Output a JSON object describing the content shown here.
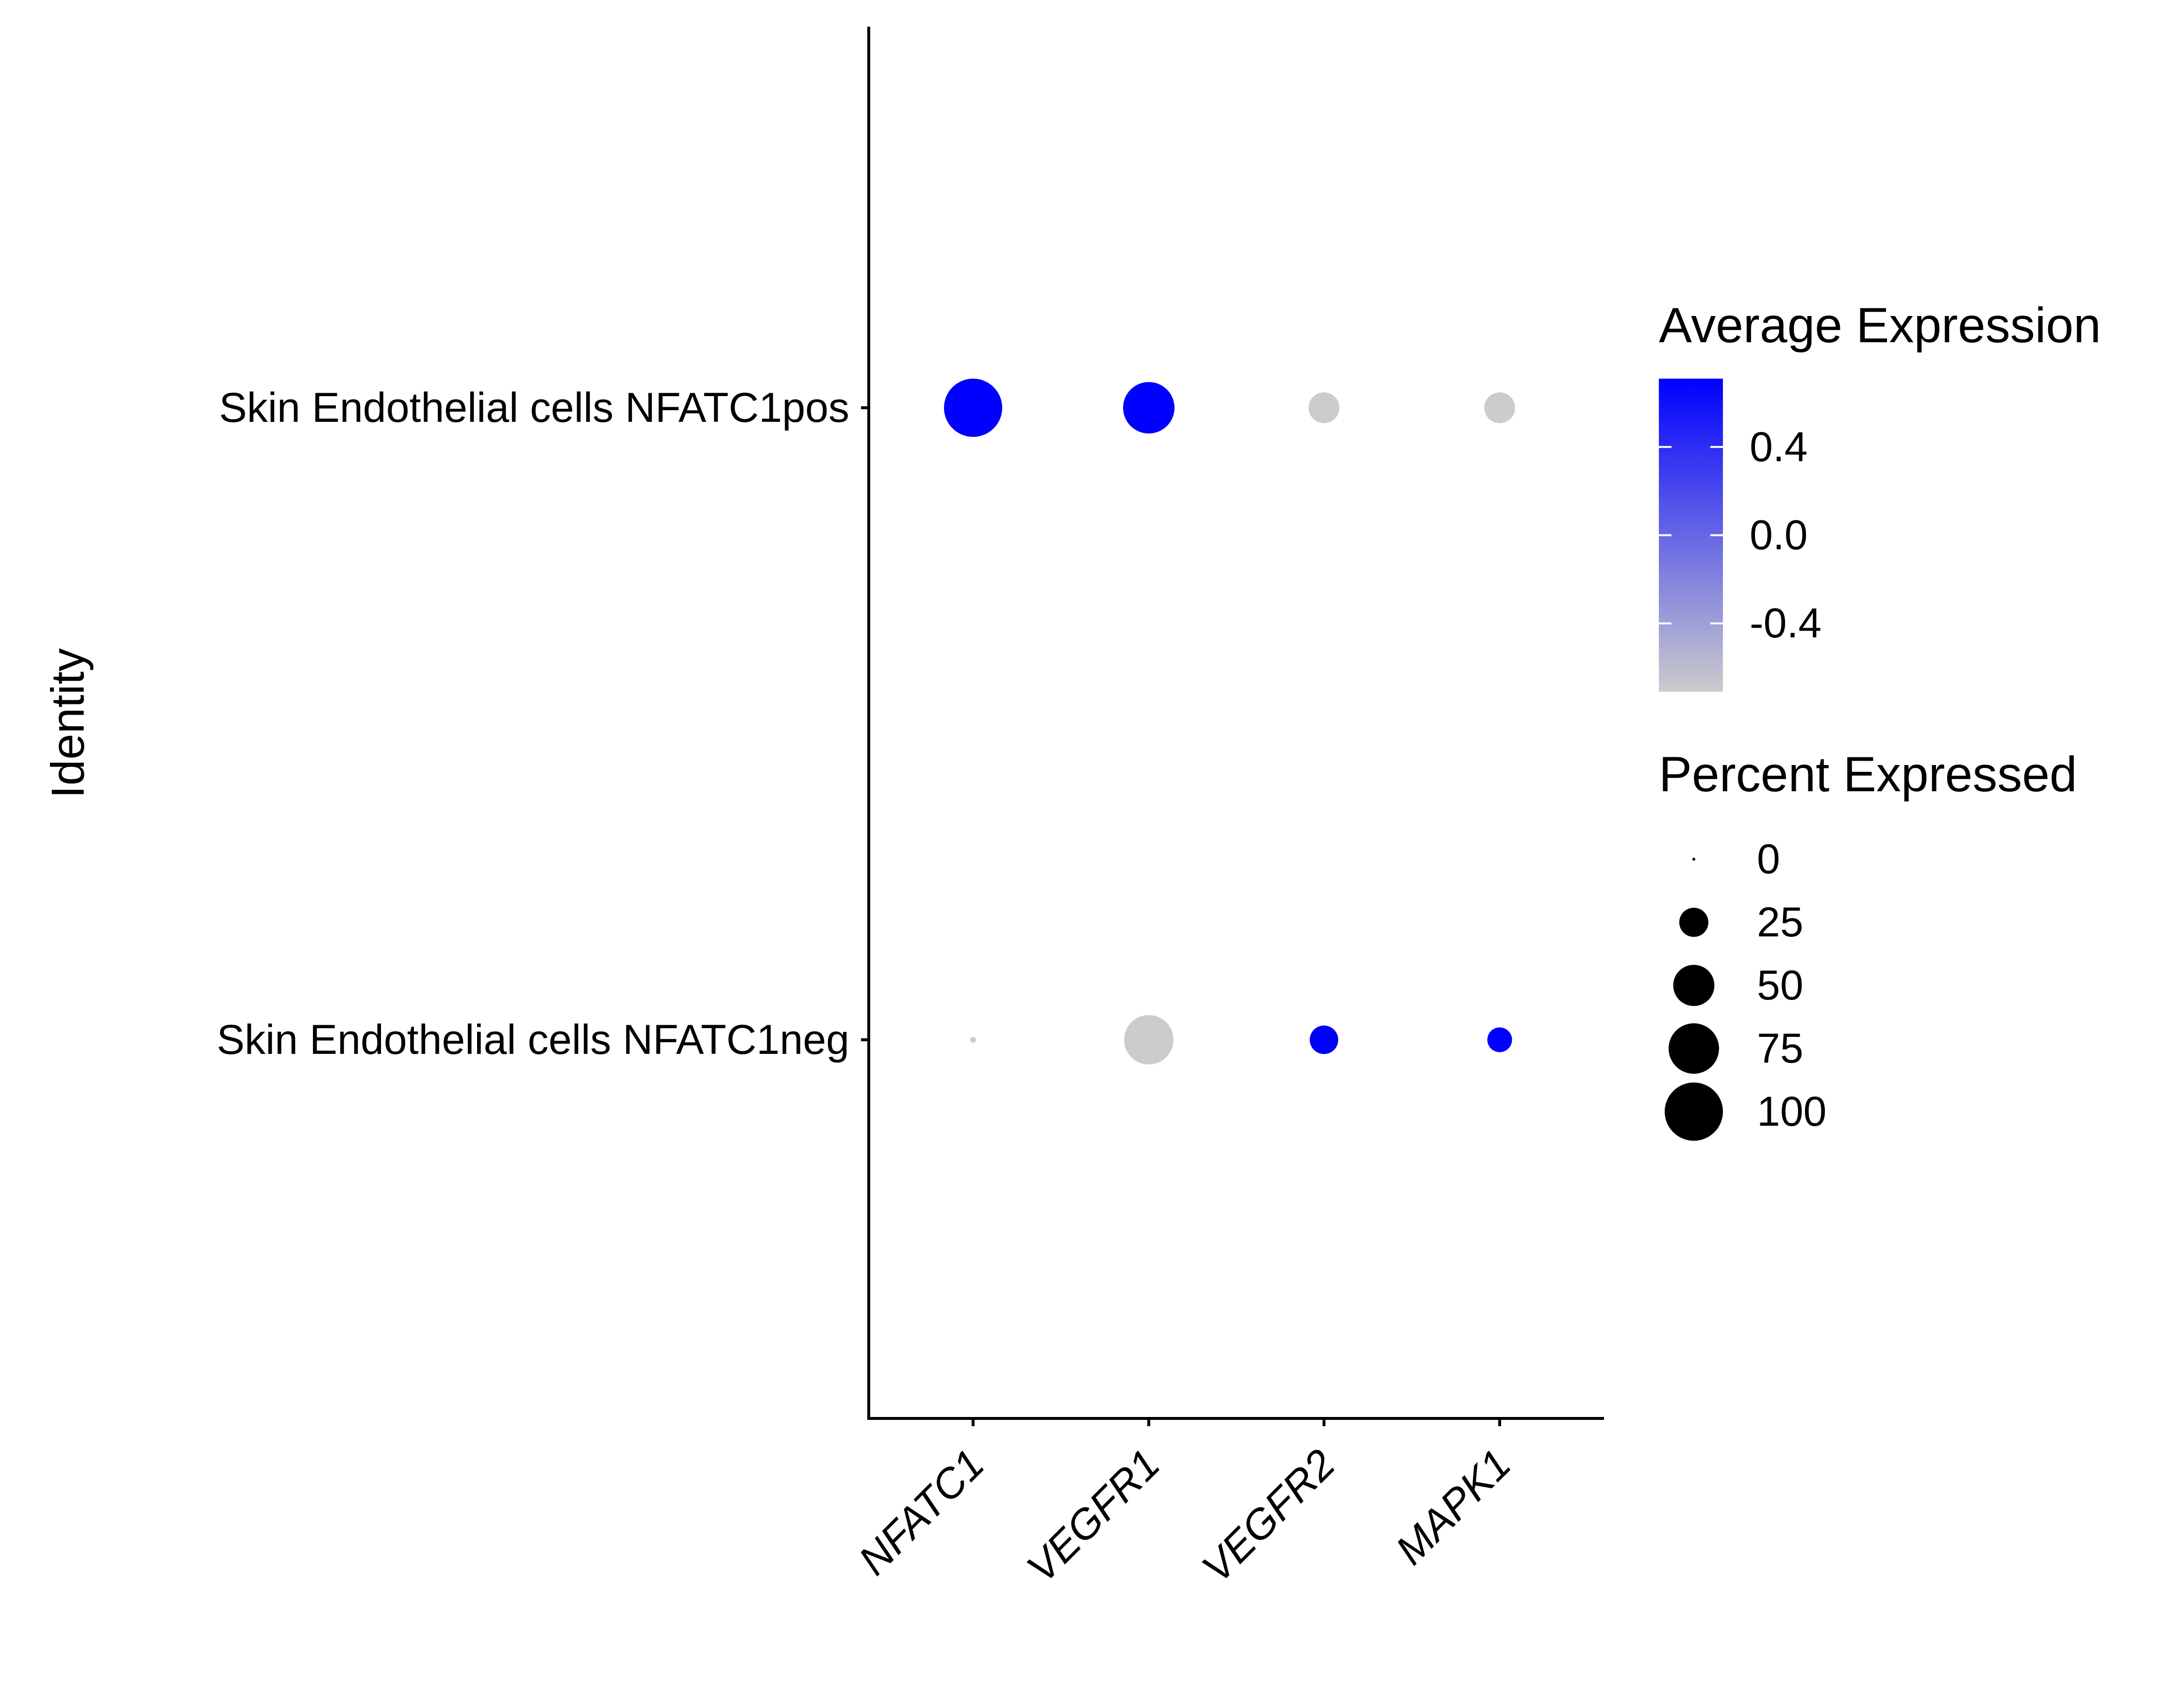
{
  "chart_data": {
    "type": "scatter",
    "subtype": "dot-plot",
    "xlabel": "",
    "ylabel": "Identity",
    "x_categories": [
      "NFATC1",
      "VEGFR1",
      "VEGFR2",
      "MAPK1"
    ],
    "y_categories": [
      "Skin Endothelial cells NFATC1pos",
      "Skin Endothelial cells NFATC1neg"
    ],
    "points": [
      {
        "gene": "NFATC1",
        "identity": "Skin Endothelial cells NFATC1pos",
        "avg_expression": 0.71,
        "pct_expressed": 100
      },
      {
        "gene": "VEGFR1",
        "identity": "Skin Endothelial cells NFATC1pos",
        "avg_expression": 0.71,
        "pct_expressed": 78
      },
      {
        "gene": "VEGFR2",
        "identity": "Skin Endothelial cells NFATC1pos",
        "avg_expression": -0.71,
        "pct_expressed": 28
      },
      {
        "gene": "MAPK1",
        "identity": "Skin Endothelial cells NFATC1pos",
        "avg_expression": -0.71,
        "pct_expressed": 28
      },
      {
        "gene": "NFATC1",
        "identity": "Skin Endothelial cells NFATC1neg",
        "avg_expression": -0.71,
        "pct_expressed": 1
      },
      {
        "gene": "VEGFR1",
        "identity": "Skin Endothelial cells NFATC1neg",
        "avg_expression": -0.71,
        "pct_expressed": 72
      },
      {
        "gene": "VEGFR2",
        "identity": "Skin Endothelial cells NFATC1neg",
        "avg_expression": 0.71,
        "pct_expressed": 24
      },
      {
        "gene": "MAPK1",
        "identity": "Skin Endothelial cells NFATC1neg",
        "avg_expression": 0.71,
        "pct_expressed": 18
      }
    ],
    "color_legend": {
      "title": "Average Expression",
      "range": [
        -0.71,
        0.71
      ],
      "low_color": "#cccccc",
      "high_color": "#0000ff",
      "ticks": [
        0.4,
        0.0,
        -0.4
      ],
      "tick_labels": [
        "0.4",
        "0.0",
        "-0.4"
      ]
    },
    "size_legend": {
      "title": "Percent Expressed",
      "values": [
        0,
        25,
        50,
        75,
        100
      ],
      "labels": [
        "0",
        "25",
        "50",
        "75",
        "100"
      ]
    },
    "grid": false,
    "legend_position": "right"
  }
}
